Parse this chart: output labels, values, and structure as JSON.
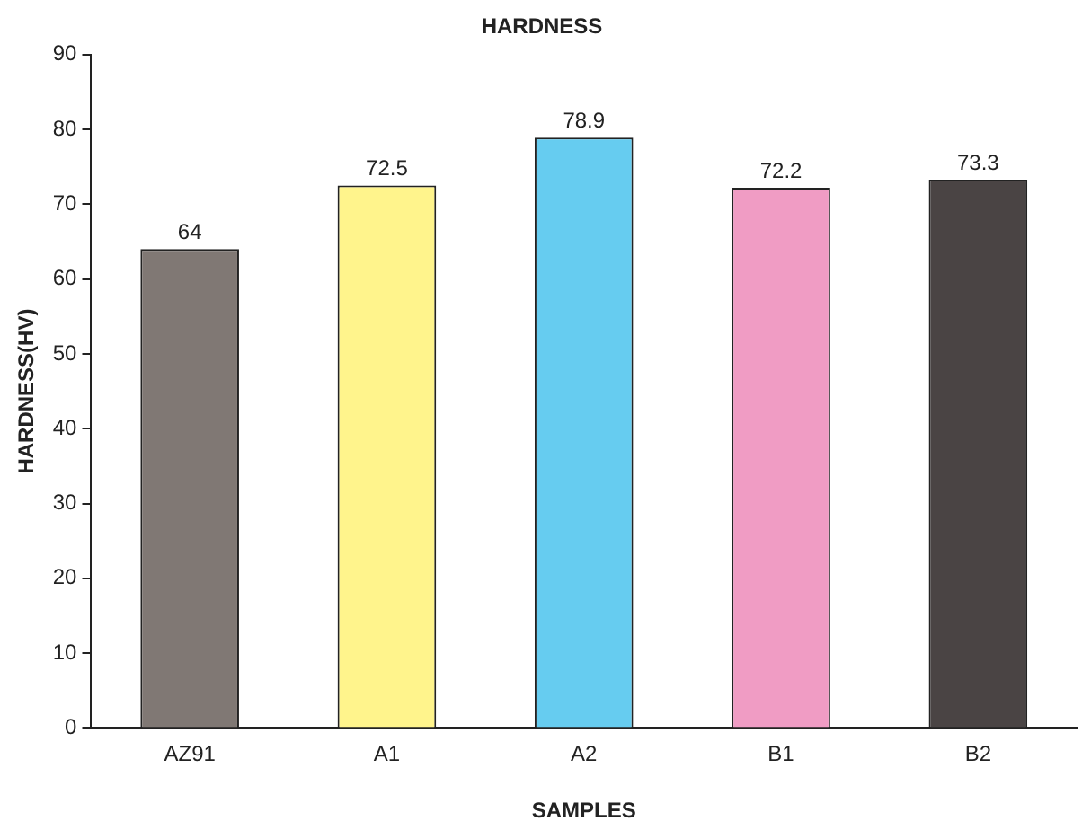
{
  "chart_data": {
    "type": "bar",
    "title": "HARDNESS",
    "xlabel": "SAMPLES",
    "ylabel": "HARDNESS(HV)",
    "categories": [
      "AZ91",
      "A1",
      "A2",
      "B1",
      "B2"
    ],
    "values": [
      64,
      72.5,
      78.9,
      72.2,
      73.3
    ],
    "colors": [
      "#807874",
      "#fff48c",
      "#66ccf0",
      "#f09cc4",
      "#4a4444"
    ],
    "ylim": [
      0,
      90
    ],
    "yticks": [
      0,
      10,
      20,
      30,
      40,
      50,
      60,
      70,
      80,
      90
    ],
    "grid": false,
    "legend": false,
    "data_labels": true
  }
}
